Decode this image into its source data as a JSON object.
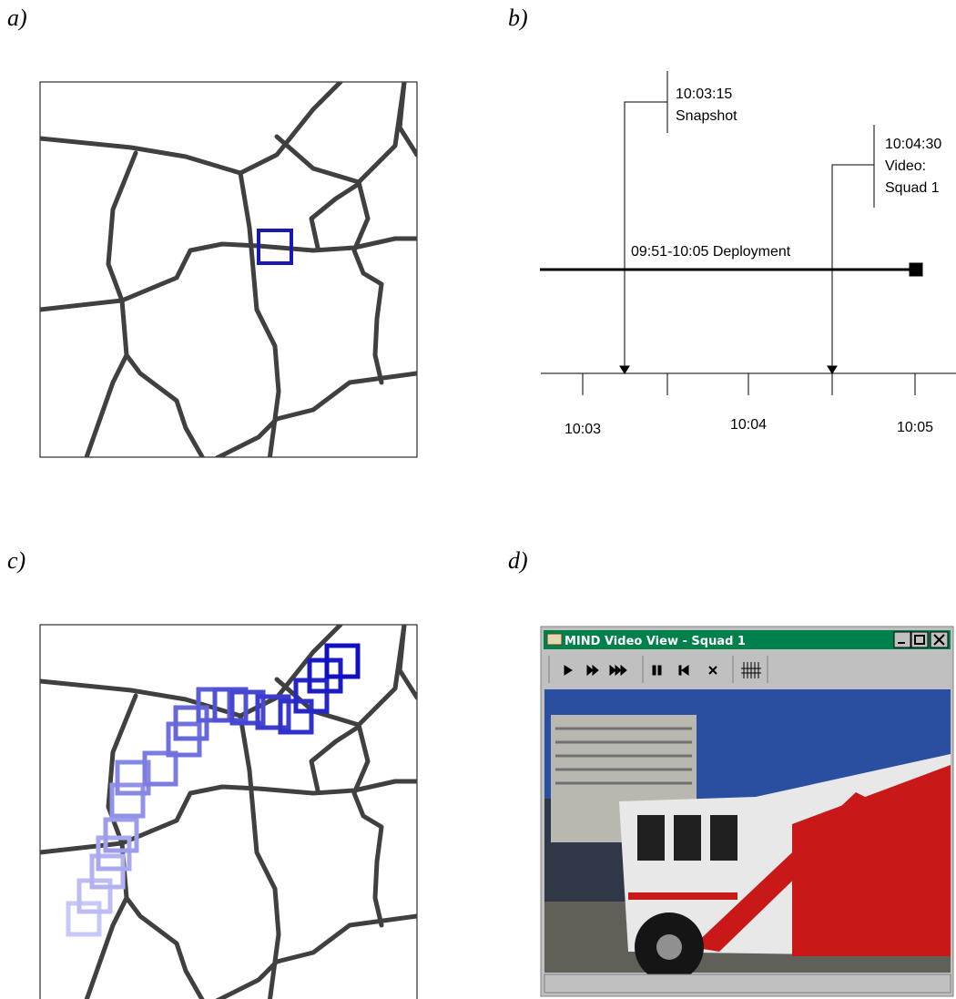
{
  "labels": [
    "a)",
    "b)",
    "c)",
    "d)"
  ],
  "timeline": {
    "snapshot": {
      "time": "10:03:15",
      "label": "Snapshot"
    },
    "video": {
      "time": "10:04:30",
      "label": "Video:",
      "unit": "Squad 1"
    },
    "deployment": "09:51-10:05 Deployment",
    "ticks": [
      "10:03",
      "10:04",
      "10:05"
    ]
  },
  "window": {
    "title": "MIND Video View - Squad 1"
  }
}
